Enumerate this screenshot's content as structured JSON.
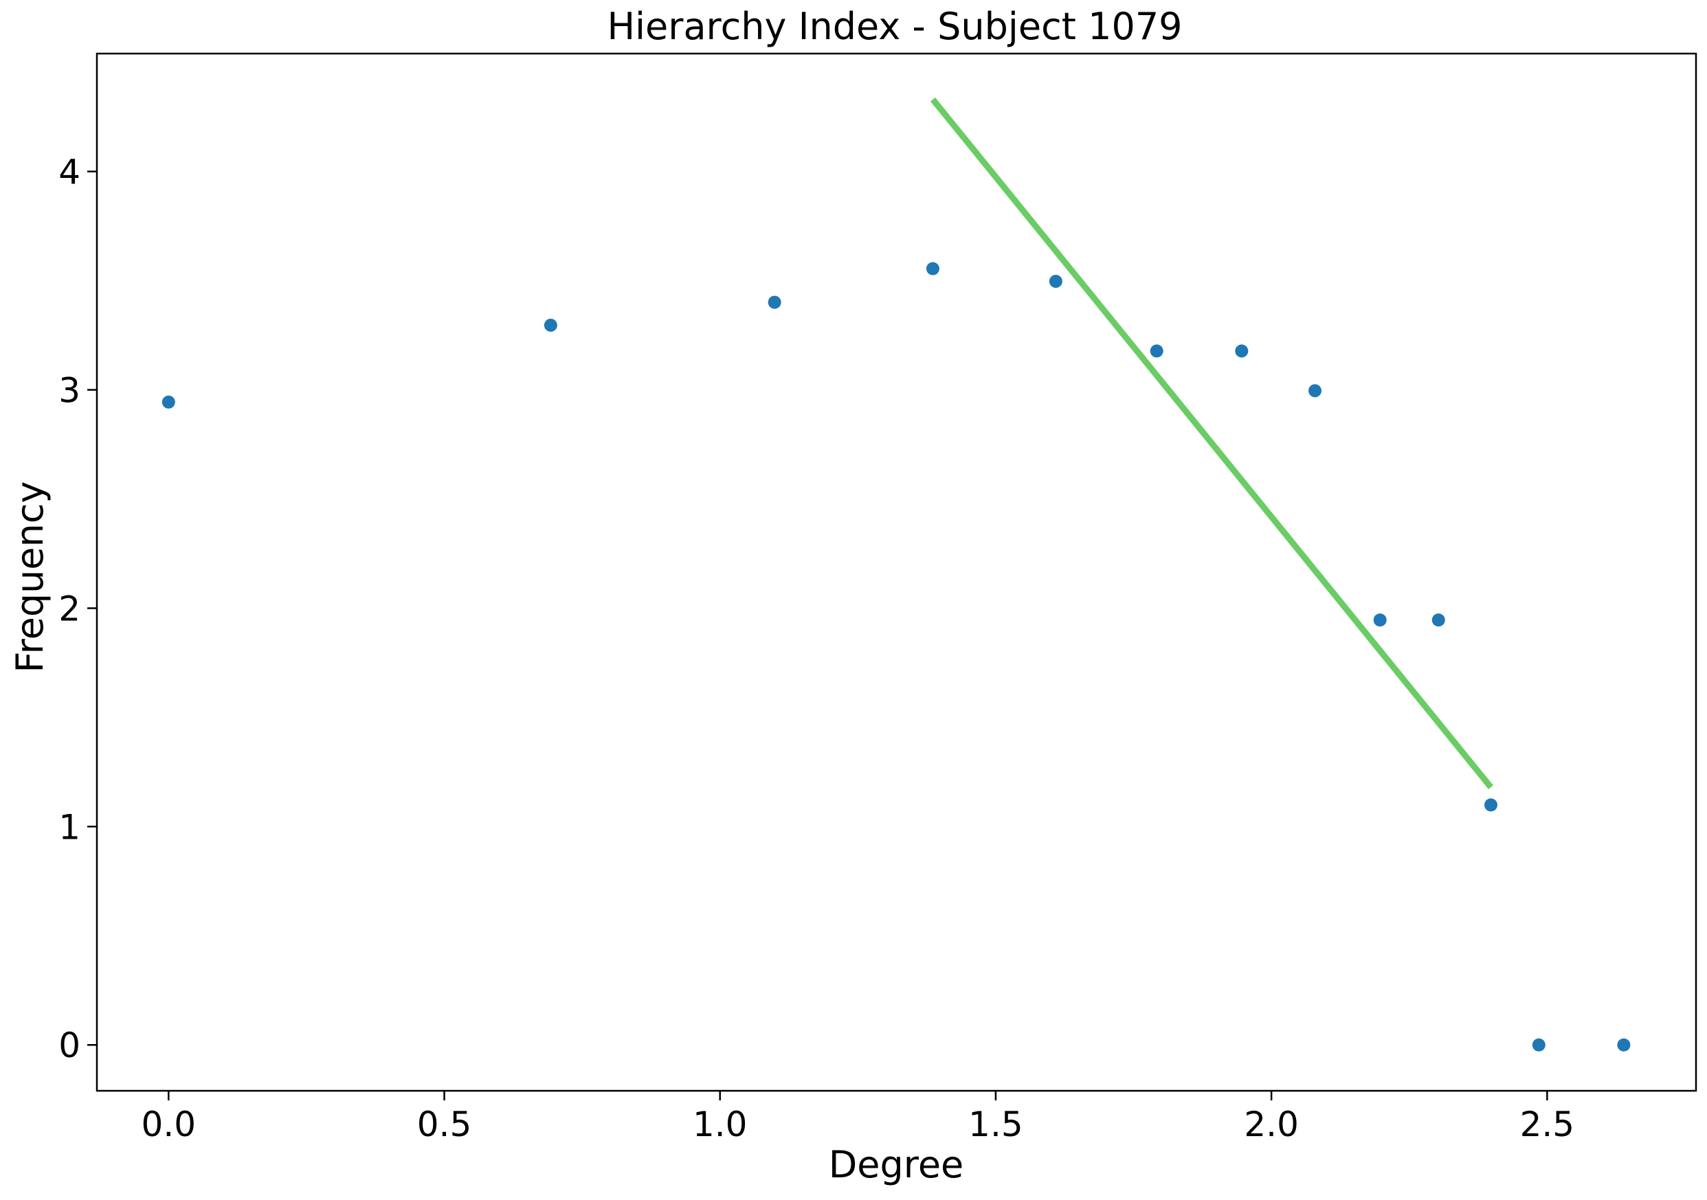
{
  "chart_data": {
    "type": "scatter",
    "title": "Hierarchy Index - Subject 1079",
    "xlabel": "Degree",
    "ylabel": "Frequency",
    "xlim": [
      -0.13,
      2.77
    ],
    "ylim": [
      -0.21,
      4.54
    ],
    "xticks": [
      0.0,
      0.5,
      1.0,
      1.5,
      2.0,
      2.5
    ],
    "xtick_labels": [
      "0.0",
      "0.5",
      "1.0",
      "1.5",
      "2.0",
      "2.5"
    ],
    "yticks": [
      0,
      1,
      2,
      3,
      4
    ],
    "ytick_labels": [
      "0",
      "1",
      "2",
      "3",
      "4"
    ],
    "grid": false,
    "legend": "none",
    "series": [
      {
        "type": "scatter",
        "color": "#1f77b4",
        "x": [
          0.0,
          0.693,
          1.099,
          1.386,
          1.609,
          1.792,
          1.946,
          2.079,
          2.197,
          2.303,
          2.398,
          2.485,
          2.639
        ],
        "y": [
          2.944,
          3.296,
          3.401,
          3.555,
          3.497,
          3.178,
          3.178,
          2.996,
          1.946,
          1.946,
          1.099,
          0.0,
          0.0
        ]
      },
      {
        "type": "line",
        "color": "#6acc64",
        "x": [
          1.386,
          2.398
        ],
        "y": [
          4.33,
          1.18
        ]
      }
    ]
  }
}
